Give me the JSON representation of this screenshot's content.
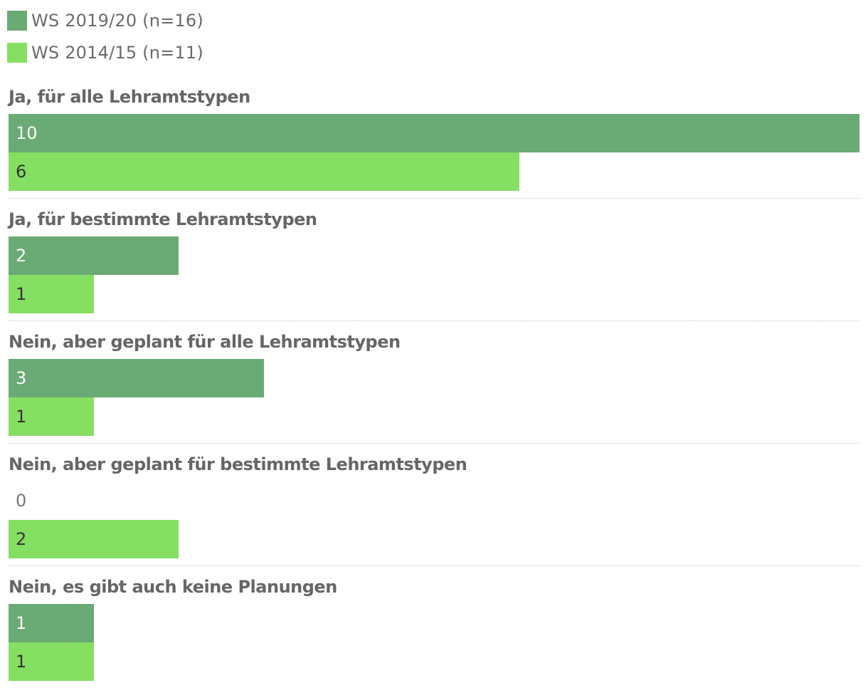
{
  "colors": {
    "series_1": "#6aaa74",
    "series_2": "#85df62",
    "value_on_dark": "#ffffff",
    "value_on_light": "#333333",
    "value_zero": "#777777"
  },
  "chart_data": {
    "type": "bar",
    "orientation": "horizontal",
    "title": "",
    "xlabel": "",
    "ylabel": "",
    "legend_position": "top-left",
    "grid": false,
    "xlim": [
      0,
      10
    ],
    "categories": [
      "Ja, für alle Lehramtstypen",
      "Ja, für bestimmte Lehramtstypen",
      "Nein, aber geplant für alle Lehramtstypen",
      "Nein, aber geplant für bestimmte Lehramtstypen",
      "Nein, es gibt auch keine Planungen"
    ],
    "series": [
      {
        "name": "WS 2019/20 (n=16)",
        "values": [
          10,
          2,
          3,
          0,
          1
        ]
      },
      {
        "name": "WS 2014/15 (n=11)",
        "values": [
          6,
          1,
          1,
          2,
          1
        ]
      }
    ]
  }
}
